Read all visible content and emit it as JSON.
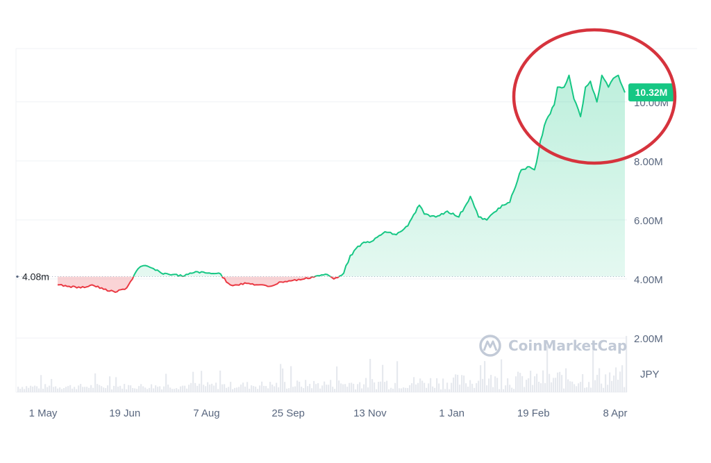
{
  "chart_data": {
    "type": "area",
    "currency": "JPY",
    "watermark": "CoinMarketCap",
    "x_ticks": [
      "1 May",
      "19 Jun",
      "7 Aug",
      "25 Sep",
      "13 Nov",
      "1 Jan",
      "19 Feb",
      "8 Apr"
    ],
    "y_ticks": [
      "2.00M",
      "4.00M",
      "6.00M",
      "8.00M",
      "10.00M"
    ],
    "y_tick_values": [
      2000000,
      4000000,
      6000000,
      8000000,
      10000000
    ],
    "ylim": [
      0,
      11500000
    ],
    "reference_label": "4.08m",
    "reference_value": 4080000,
    "current_label": "10.32M",
    "current_value": 10320000,
    "colors": {
      "up": "#16c784",
      "down": "#ea3943",
      "annotation": "#d6333d"
    },
    "series": [
      {
        "x": [
          "2023-05-01",
          "2023-05-08",
          "2023-05-15",
          "2023-05-22",
          "2023-05-29",
          "2023-06-05",
          "2023-06-12",
          "2023-06-19",
          "2023-06-22",
          "2023-06-26",
          "2023-07-03",
          "2023-07-10",
          "2023-07-17",
          "2023-07-24",
          "2023-07-31",
          "2023-08-07",
          "2023-08-14",
          "2023-08-17",
          "2023-08-24",
          "2023-08-31",
          "2023-09-07",
          "2023-09-14",
          "2023-09-21",
          "2023-09-28",
          "2023-10-05",
          "2023-10-12",
          "2023-10-16",
          "2023-10-22",
          "2023-10-26",
          "2023-11-02",
          "2023-11-09",
          "2023-11-16",
          "2023-11-23",
          "2023-11-30",
          "2023-12-07",
          "2023-12-10",
          "2023-12-17",
          "2023-12-24",
          "2023-12-31",
          "2024-01-07",
          "2024-01-12",
          "2024-01-17",
          "2024-01-24",
          "2024-01-31",
          "2024-02-07",
          "2024-02-12",
          "2024-02-15",
          "2024-02-21",
          "2024-02-27",
          "2024-02-29",
          "2024-03-04",
          "2024-03-07",
          "2024-03-10",
          "2024-03-14",
          "2024-03-17",
          "2024-03-20",
          "2024-03-24",
          "2024-03-27",
          "2024-03-31",
          "2024-04-03",
          "2024-04-06",
          "2024-04-10"
        ],
        "values": [
          3800000,
          3750000,
          3700000,
          3800000,
          3650000,
          3550000,
          3700000,
          4350000,
          4450000,
          4400000,
          4200000,
          4150000,
          4100000,
          4250000,
          4200000,
          4200000,
          3800000,
          3800000,
          3850000,
          3800000,
          3750000,
          3900000,
          3950000,
          4000000,
          4100000,
          4150000,
          4000000,
          4200000,
          4800000,
          5200000,
          5300000,
          5600000,
          5500000,
          5800000,
          6500000,
          6200000,
          6100000,
          6300000,
          6100000,
          6800000,
          6100000,
          6000000,
          6400000,
          6600000,
          7700000,
          7800000,
          7700000,
          9200000,
          9900000,
          10500000,
          10500000,
          10900000,
          10100000,
          9500000,
          10500000,
          10700000,
          10000000,
          10900000,
          10500000,
          10800000,
          10900000,
          10320000
        ]
      }
    ]
  }
}
